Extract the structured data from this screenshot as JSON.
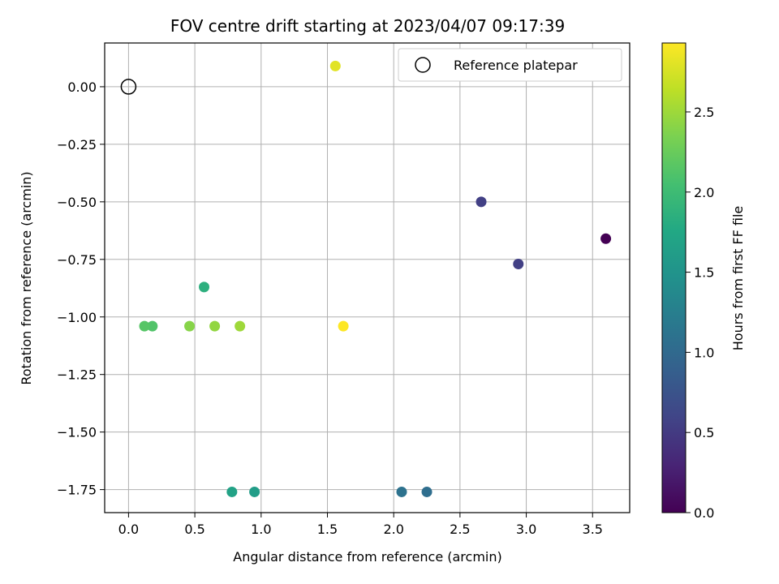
{
  "chart_data": {
    "type": "scatter",
    "title": "FOV centre drift starting at 2023/04/07 09:17:39",
    "xlabel": "Angular distance from reference (arcmin)",
    "ylabel": "Rotation from reference (arcmin)",
    "xlim": [
      -0.18,
      3.78
    ],
    "ylim": [
      -1.85,
      0.19
    ],
    "xticks": [
      0.0,
      0.5,
      1.0,
      1.5,
      2.0,
      2.5,
      3.0,
      3.5
    ],
    "xtick_labels": [
      "0.0",
      "0.5",
      "1.0",
      "1.5",
      "2.0",
      "2.5",
      "3.0",
      "3.5"
    ],
    "yticks": [
      0.0,
      -0.25,
      -0.5,
      -0.75,
      -1.0,
      -1.25,
      -1.5,
      -1.75
    ],
    "ytick_labels": [
      "0.00",
      "−0.25",
      "−0.50",
      "−0.75",
      "−1.00",
      "−1.25",
      "−1.50",
      "−1.75"
    ],
    "grid": true,
    "colormap": "viridis",
    "colorbar": {
      "label": "Hours from first FF file",
      "range": [
        0.0,
        2.93
      ],
      "ticks": [
        0.0,
        0.5,
        1.0,
        1.5,
        2.0,
        2.5
      ],
      "tick_labels": [
        "0.0",
        "0.5",
        "1.0",
        "1.5",
        "2.0",
        "2.5"
      ]
    },
    "legend": {
      "placement": "upper-right",
      "entries": [
        {
          "label": "Reference platepar",
          "marker": "open-circle",
          "color": "#000000"
        }
      ]
    },
    "reference_point": {
      "x": 0.0,
      "y": 0.0
    },
    "points": [
      {
        "x": 3.6,
        "y": -0.66,
        "c": 0.0
      },
      {
        "x": 2.66,
        "y": -0.5,
        "c": 0.55
      },
      {
        "x": 2.94,
        "y": -0.77,
        "c": 0.55
      },
      {
        "x": 2.25,
        "y": -1.76,
        "c": 1.05
      },
      {
        "x": 2.06,
        "y": -1.76,
        "c": 1.1
      },
      {
        "x": 0.95,
        "y": -1.76,
        "c": 1.62
      },
      {
        "x": 0.78,
        "y": -1.76,
        "c": 1.68
      },
      {
        "x": 0.57,
        "y": -0.87,
        "c": 1.85
      },
      {
        "x": 0.18,
        "y": -1.04,
        "c": 2.12
      },
      {
        "x": 0.12,
        "y": -1.04,
        "c": 2.15
      },
      {
        "x": 0.46,
        "y": -1.04,
        "c": 2.4
      },
      {
        "x": 0.65,
        "y": -1.04,
        "c": 2.45
      },
      {
        "x": 0.84,
        "y": -1.04,
        "c": 2.5
      },
      {
        "x": 1.56,
        "y": 0.09,
        "c": 2.8
      },
      {
        "x": 1.62,
        "y": -1.04,
        "c": 2.93
      }
    ]
  }
}
